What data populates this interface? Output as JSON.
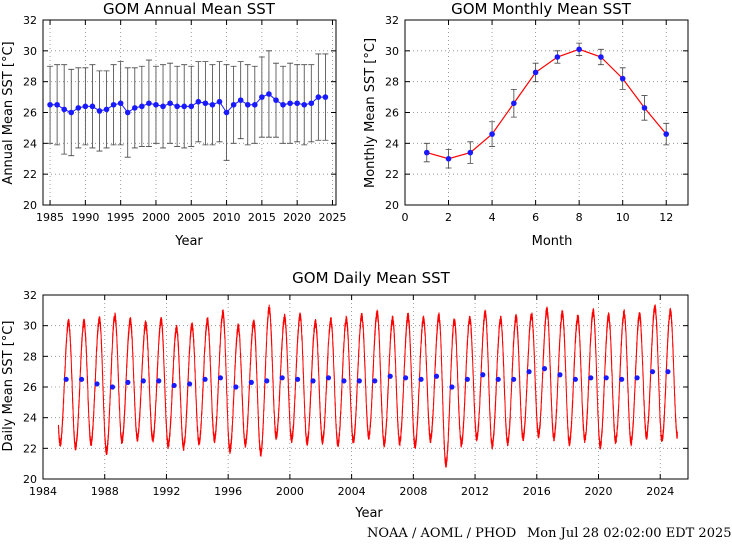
{
  "footer": {
    "credit": "NOAA / AOML / PHOD",
    "timestamp": "Mon Jul 28 02:02:00 EDT 2025"
  },
  "colors": {
    "line": "#ff0000",
    "marker": "#1a1aff",
    "errorbar": "#444444",
    "grid": "#888888"
  },
  "chart_data": [
    {
      "type": "scatter",
      "title": "GOM Annual Mean SST",
      "xlabel": "Year",
      "ylabel": "Annual Mean SST [°C]",
      "xlim": [
        1984,
        2025.5
      ],
      "ylim": [
        20,
        32
      ],
      "xticks": [
        1985,
        1990,
        1995,
        2000,
        2005,
        2010,
        2015,
        2020,
        2025
      ],
      "yticks": [
        20,
        22,
        24,
        26,
        28,
        30,
        32
      ],
      "grid": true,
      "errorbars": true,
      "x": [
        1985,
        1986,
        1987,
        1988,
        1989,
        1990,
        1991,
        1992,
        1993,
        1994,
        1995,
        1996,
        1997,
        1998,
        1999,
        2000,
        2001,
        2002,
        2003,
        2004,
        2005,
        2006,
        2007,
        2008,
        2009,
        2010,
        2011,
        2012,
        2013,
        2014,
        2015,
        2016,
        2017,
        2018,
        2019,
        2020,
        2021,
        2022,
        2023,
        2024
      ],
      "y": [
        26.5,
        26.5,
        26.2,
        26.0,
        26.3,
        26.4,
        26.4,
        26.1,
        26.2,
        26.5,
        26.6,
        26.0,
        26.3,
        26.4,
        26.6,
        26.5,
        26.4,
        26.6,
        26.4,
        26.4,
        26.4,
        26.7,
        26.6,
        26.5,
        26.7,
        26.0,
        26.5,
        26.8,
        26.5,
        26.5,
        27.0,
        27.2,
        26.8,
        26.5,
        26.6,
        26.6,
        26.5,
        26.6,
        27.0,
        27.0
      ],
      "err": [
        2.5,
        2.6,
        2.9,
        2.8,
        2.6,
        2.5,
        2.7,
        2.6,
        2.5,
        2.6,
        2.7,
        2.9,
        2.6,
        2.6,
        2.8,
        2.5,
        2.7,
        2.6,
        2.6,
        2.7,
        2.6,
        2.6,
        2.7,
        2.6,
        2.6,
        3.1,
        2.5,
        2.5,
        2.6,
        2.5,
        2.6,
        2.8,
        2.4,
        2.5,
        2.6,
        2.5,
        2.6,
        2.5,
        2.8,
        2.8
      ]
    },
    {
      "type": "line",
      "title": "GOM Monthly Mean SST",
      "xlabel": "Month",
      "ylabel": "Monthly Mean SST [°C]",
      "xlim": [
        0,
        13
      ],
      "ylim": [
        20,
        32
      ],
      "xticks": [
        0,
        2,
        4,
        6,
        8,
        10,
        12
      ],
      "yticks": [
        20,
        22,
        24,
        26,
        28,
        30,
        32
      ],
      "grid": true,
      "errorbars": true,
      "x": [
        1,
        2,
        3,
        4,
        5,
        6,
        7,
        8,
        9,
        10,
        11,
        12
      ],
      "y": [
        23.4,
        23.0,
        23.4,
        24.6,
        26.6,
        28.6,
        29.6,
        30.1,
        29.6,
        28.2,
        26.3,
        24.6
      ],
      "err": [
        0.6,
        0.6,
        0.7,
        0.8,
        0.9,
        0.6,
        0.4,
        0.4,
        0.5,
        0.7,
        0.8,
        0.7
      ]
    },
    {
      "type": "line",
      "title": "GOM Daily Mean SST",
      "xlabel": "Year",
      "ylabel": "Daily Mean SST [°C]",
      "xlim": [
        1984,
        2025.8
      ],
      "ylim": [
        20,
        32
      ],
      "xticks": [
        1984,
        1988,
        1992,
        1996,
        2000,
        2004,
        2008,
        2012,
        2016,
        2020,
        2024
      ],
      "yticks": [
        20,
        22,
        24,
        26,
        28,
        30,
        32
      ],
      "grid": true,
      "series": [
        {
          "kind": "daily-seasonal-cycle",
          "start": 1985.0,
          "end": 2025.55,
          "seasonal_min_day_of_year_fraction": 0.11,
          "seasonal_max_day_of_year_fraction": 0.66,
          "year_min_sst": [
            22.3,
            22.1,
            22.4,
            21.8,
            22.5,
            22.7,
            22.6,
            22.2,
            22.1,
            22.4,
            22.6,
            21.9,
            22.3,
            21.7,
            22.8,
            22.6,
            22.4,
            22.5,
            22.3,
            22.5,
            22.8,
            22.3,
            22.4,
            22.2,
            22.6,
            21.0,
            22.3,
            22.7,
            22.2,
            22.4,
            22.7,
            22.9,
            22.7,
            22.4,
            22.6,
            22.2,
            22.5,
            22.4,
            22.8,
            22.6,
            22.8
          ],
          "year_max_sst": [
            30.2,
            30.2,
            30.4,
            30.6,
            30.3,
            30.1,
            30.3,
            29.8,
            30.0,
            30.3,
            30.8,
            29.9,
            30.2,
            31.1,
            30.5,
            30.6,
            30.2,
            30.3,
            30.4,
            30.6,
            30.8,
            30.4,
            30.6,
            30.4,
            30.6,
            30.3,
            30.4,
            30.8,
            30.4,
            30.5,
            30.7,
            31.0,
            30.8,
            30.5,
            30.9,
            30.6,
            30.8,
            30.7,
            31.2,
            30.9
          ]
        },
        {
          "kind": "annual-mean-points",
          "x": [
            1985.5,
            1986.5,
            1987.5,
            1988.5,
            1989.5,
            1990.5,
            1991.5,
            1992.5,
            1993.5,
            1994.5,
            1995.5,
            1996.5,
            1997.5,
            1998.5,
            1999.5,
            2000.5,
            2001.5,
            2002.5,
            2003.5,
            2004.5,
            2005.5,
            2006.5,
            2007.5,
            2008.5,
            2009.5,
            2010.5,
            2011.5,
            2012.5,
            2013.5,
            2014.5,
            2015.5,
            2016.5,
            2017.5,
            2018.5,
            2019.5,
            2020.5,
            2021.5,
            2022.5,
            2023.5,
            2024.5
          ],
          "y": [
            26.5,
            26.5,
            26.2,
            26.0,
            26.3,
            26.4,
            26.4,
            26.1,
            26.2,
            26.5,
            26.6,
            26.0,
            26.3,
            26.4,
            26.6,
            26.5,
            26.4,
            26.6,
            26.4,
            26.4,
            26.4,
            26.7,
            26.6,
            26.5,
            26.7,
            26.0,
            26.5,
            26.8,
            26.5,
            26.5,
            27.0,
            27.2,
            26.8,
            26.5,
            26.6,
            26.6,
            26.5,
            26.6,
            27.0,
            27.0
          ]
        }
      ]
    }
  ]
}
